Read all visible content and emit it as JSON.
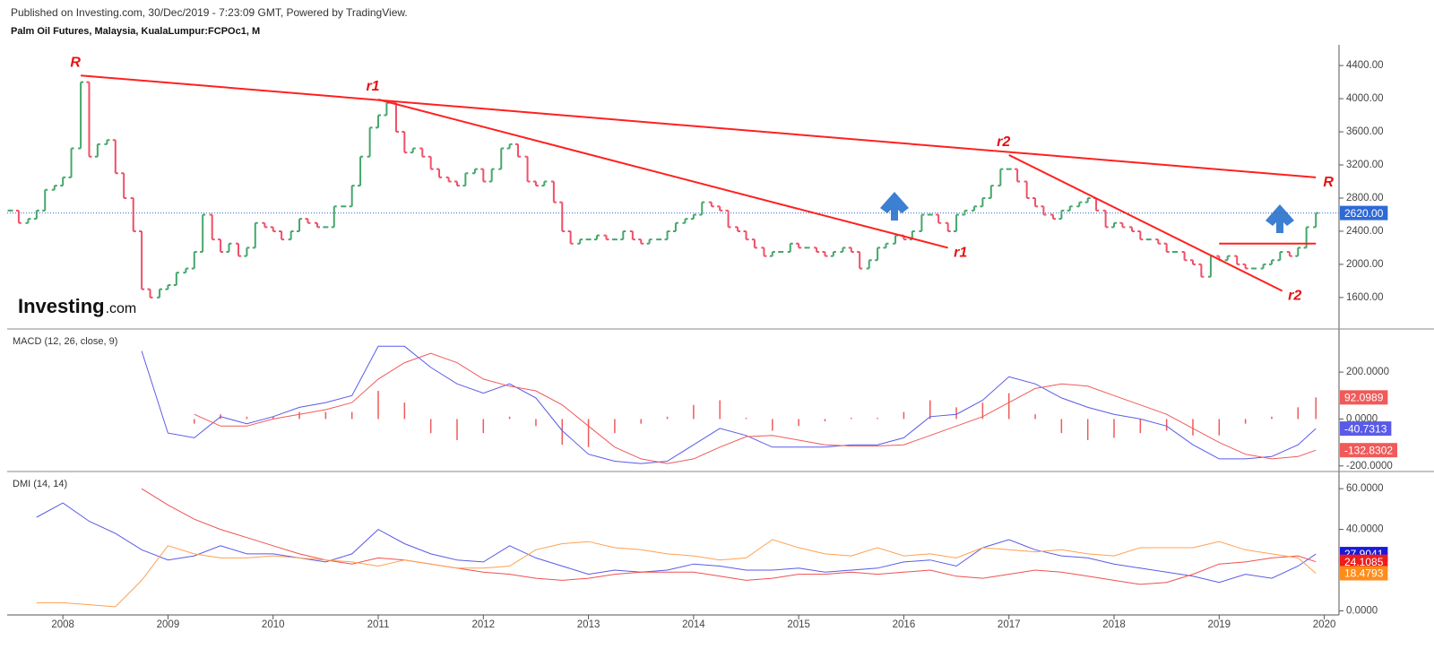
{
  "header": {
    "published": "Published on Investing.com, 30/Dec/2019 - 7:23:09 GMT, Powered by TradingView.",
    "symbol": "Palm Oil Futures, Malaysia, KualaLumpur:FCPOc1, M"
  },
  "logo": {
    "name": "Investing",
    "suffix": ".com"
  },
  "chart_data": [
    {
      "type": "bar",
      "up_color": "#45a76b",
      "down_color": "#ef5068",
      "xlim": [
        2007.47,
        2020.14
      ],
      "ylim": [
        1220,
        4650
      ],
      "yticks": [
        {
          "value": 1600,
          "label": "1600.00"
        },
        {
          "value": 2000,
          "label": "2000.00"
        },
        {
          "value": 2400,
          "label": "2400.00"
        },
        {
          "value": 2800,
          "label": "2800.00"
        },
        {
          "value": 3200,
          "label": "3200.00"
        },
        {
          "value": 3600,
          "label": "3600.00"
        },
        {
          "value": 4000,
          "label": "4000.00"
        },
        {
          "value": 4400,
          "label": "4400.00"
        }
      ],
      "last_price": {
        "value": 2620,
        "label": "2620.00",
        "color": "#2e6ad6"
      },
      "x": [
        2007.5,
        2007.58,
        2007.67,
        2007.75,
        2007.83,
        2007.92,
        2008,
        2008.08,
        2008.17,
        2008.25,
        2008.33,
        2008.42,
        2008.5,
        2008.58,
        2008.67,
        2008.75,
        2008.83,
        2008.92,
        2009,
        2009.08,
        2009.17,
        2009.25,
        2009.33,
        2009.42,
        2009.5,
        2009.58,
        2009.67,
        2009.75,
        2009.83,
        2009.92,
        2010,
        2010.08,
        2010.17,
        2010.25,
        2010.33,
        2010.42,
        2010.5,
        2010.58,
        2010.67,
        2010.75,
        2010.83,
        2010.92,
        2011,
        2011.08,
        2011.17,
        2011.25,
        2011.33,
        2011.42,
        2011.5,
        2011.58,
        2011.67,
        2011.75,
        2011.83,
        2011.92,
        2012,
        2012.08,
        2012.17,
        2012.25,
        2012.33,
        2012.42,
        2012.5,
        2012.58,
        2012.67,
        2012.75,
        2012.83,
        2012.92,
        2013,
        2013.08,
        2013.17,
        2013.25,
        2013.33,
        2013.42,
        2013.5,
        2013.58,
        2013.67,
        2013.75,
        2013.83,
        2013.92,
        2014,
        2014.08,
        2014.17,
        2014.25,
        2014.33,
        2014.42,
        2014.5,
        2014.58,
        2014.67,
        2014.75,
        2014.83,
        2014.92,
        2015,
        2015.08,
        2015.17,
        2015.25,
        2015.33,
        2015.42,
        2015.5,
        2015.58,
        2015.67,
        2015.75,
        2015.83,
        2015.92,
        2016,
        2016.08,
        2016.17,
        2016.25,
        2016.33,
        2016.42,
        2016.5,
        2016.58,
        2016.67,
        2016.75,
        2016.83,
        2016.92,
        2017,
        2017.08,
        2017.17,
        2017.25,
        2017.33,
        2017.42,
        2017.5,
        2017.58,
        2017.67,
        2017.75,
        2017.83,
        2017.92,
        2018,
        2018.08,
        2018.17,
        2018.25,
        2018.33,
        2018.42,
        2018.5,
        2018.58,
        2018.67,
        2018.75,
        2018.83,
        2018.92,
        2019,
        2019.08,
        2019.17,
        2019.25,
        2019.33,
        2019.42,
        2019.5,
        2019.58,
        2019.67,
        2019.75,
        2019.83,
        2019.92
      ],
      "values": [
        2650,
        2500,
        2550,
        2650,
        2900,
        2950,
        3050,
        3400,
        4200,
        3300,
        3450,
        3500,
        3100,
        2800,
        2400,
        1700,
        1600,
        1700,
        1750,
        1900,
        1950,
        2150,
        2600,
        2300,
        2150,
        2250,
        2100,
        2200,
        2500,
        2450,
        2400,
        2300,
        2400,
        2550,
        2500,
        2450,
        2450,
        2700,
        2700,
        2950,
        3300,
        3650,
        3800,
        3950,
        3600,
        3350,
        3400,
        3300,
        3150,
        3050,
        3000,
        2950,
        3100,
        3150,
        3000,
        3150,
        3400,
        3450,
        3300,
        3000,
        2950,
        3000,
        2750,
        2400,
        2250,
        2300,
        2300,
        2350,
        2300,
        2300,
        2400,
        2300,
        2250,
        2300,
        2300,
        2400,
        2500,
        2550,
        2600,
        2750,
        2700,
        2650,
        2450,
        2400,
        2300,
        2200,
        2100,
        2150,
        2150,
        2250,
        2200,
        2200,
        2150,
        2100,
        2150,
        2200,
        2150,
        1950,
        2050,
        2200,
        2250,
        2350,
        2300,
        2400,
        2600,
        2600,
        2500,
        2400,
        2600,
        2650,
        2700,
        2800,
        2950,
        3150,
        3150,
        3000,
        2800,
        2700,
        2600,
        2550,
        2650,
        2700,
        2750,
        2800,
        2650,
        2450,
        2500,
        2450,
        2400,
        2300,
        2300,
        2250,
        2150,
        2150,
        2050,
        2000,
        1850,
        2100,
        2050,
        2100,
        2000,
        1950,
        1950,
        2000,
        2050,
        2150,
        2100,
        2200,
        2450,
        2620
      ],
      "trendline_color": "#ff2020",
      "trendlines": [
        {
          "label": "R",
          "from": [
            2008.17,
            4280
          ],
          "to": [
            2019.92,
            3050
          ]
        },
        {
          "label": "r1",
          "from": [
            2011.0,
            3990
          ],
          "to": [
            2016.42,
            2200
          ]
        },
        {
          "label": "r2",
          "from": [
            2017.0,
            3320
          ],
          "to": [
            2019.6,
            1680
          ]
        },
        {
          "from": [
            2019.0,
            2250
          ],
          "to": [
            2019.92,
            2250
          ]
        }
      ]
    },
    {
      "type": "macd",
      "title": "MACD (12, 26, close, 9)",
      "xlim": [
        2007.47,
        2020.14
      ],
      "ylim": [
        -220,
        380
      ],
      "yticks": [
        {
          "value": -200,
          "label": "-200.0000"
        },
        {
          "value": 0,
          "label": "0.0000"
        },
        {
          "value": 200,
          "label": "200.0000"
        }
      ],
      "x": [
        2008.75,
        2009,
        2009.25,
        2009.5,
        2009.75,
        2010,
        2010.25,
        2010.5,
        2010.75,
        2011,
        2011.25,
        2011.5,
        2011.75,
        2012,
        2012.25,
        2012.5,
        2012.75,
        2013,
        2013.25,
        2013.5,
        2013.75,
        2014,
        2014.25,
        2014.5,
        2014.75,
        2015,
        2015.25,
        2015.5,
        2015.75,
        2016,
        2016.25,
        2016.5,
        2016.75,
        2017,
        2017.25,
        2017.5,
        2017.75,
        2018,
        2018.25,
        2018.5,
        2018.75,
        2019,
        2019.25,
        2019.5,
        2019.75,
        2019.92
      ],
      "series": [
        {
          "type": "bar",
          "color": "#f05a5a",
          "values": [
            null,
            null,
            -20,
            20,
            10,
            10,
            30,
            30,
            30,
            120,
            70,
            -60,
            -90,
            -60,
            10,
            -30,
            -110,
            -120,
            -60,
            -20,
            10,
            60,
            80,
            5,
            -50,
            -30,
            -10,
            5,
            5,
            30,
            80,
            50,
            70,
            110,
            20,
            -60,
            -90,
            -80,
            -60,
            -50,
            -70,
            -70,
            -20,
            10,
            50,
            92.0989
          ]
        },
        {
          "type": "line",
          "color": "#5a5ae8",
          "values": [
            290,
            -60,
            -80,
            10,
            -20,
            10,
            50,
            70,
            100,
            310,
            310,
            220,
            150,
            110,
            150,
            90,
            -50,
            -150,
            -180,
            -190,
            -180,
            -110,
            -40,
            -70,
            -120,
            -120,
            -120,
            -110,
            -110,
            -80,
            10,
            20,
            80,
            180,
            150,
            90,
            50,
            20,
            0,
            -30,
            -110,
            -170,
            -170,
            -160,
            -110,
            -40.7313
          ]
        },
        {
          "type": "line",
          "color": "#f05a5a",
          "values": [
            null,
            null,
            20,
            -30,
            -30,
            0,
            20,
            40,
            70,
            170,
            240,
            280,
            240,
            170,
            140,
            120,
            60,
            -30,
            -120,
            -170,
            -190,
            -170,
            -120,
            -75,
            -70,
            -90,
            -110,
            -115,
            -115,
            -110,
            -70,
            -30,
            10,
            70,
            130,
            150,
            140,
            100,
            60,
            20,
            -40,
            -100,
            -150,
            -170,
            -160,
            -132.8302
          ]
        }
      ]
    },
    {
      "type": "line",
      "title": "DMI (14, 14)",
      "xlim": [
        2007.47,
        2020.14
      ],
      "ylim": [
        -2,
        68
      ],
      "yticks": [
        {
          "value": 0,
          "label": "0.0000"
        },
        {
          "value": 40,
          "label": "40.0000"
        },
        {
          "value": 60,
          "label": "60.0000"
        }
      ],
      "xticks": [
        2008,
        2009,
        2010,
        2011,
        2012,
        2013,
        2014,
        2015,
        2016,
        2017,
        2018,
        2019,
        2020
      ],
      "x": [
        2007.75,
        2008,
        2008.25,
        2008.5,
        2008.75,
        2009,
        2009.25,
        2009.5,
        2009.75,
        2010,
        2010.25,
        2010.5,
        2010.75,
        2011,
        2011.25,
        2011.5,
        2011.75,
        2012,
        2012.25,
        2012.5,
        2012.75,
        2013,
        2013.25,
        2013.5,
        2013.75,
        2014,
        2014.25,
        2014.5,
        2014.75,
        2015,
        2015.25,
        2015.5,
        2015.75,
        2016,
        2016.25,
        2016.5,
        2016.75,
        2017,
        2017.25,
        2017.5,
        2017.75,
        2018,
        2018.25,
        2018.5,
        2018.75,
        2019,
        2019.25,
        2019.5,
        2019.75,
        2019.92
      ],
      "series": [
        {
          "color": "#5a5ae8",
          "badge_color": "#1a1ad8",
          "values": [
            46,
            53,
            44,
            38,
            30,
            25,
            27,
            32,
            28,
            28,
            26,
            24,
            28,
            40,
            33,
            28,
            25,
            24,
            32,
            26,
            22,
            18,
            20,
            19,
            20,
            23,
            22,
            20,
            20,
            21,
            19,
            20,
            21,
            24,
            25,
            22,
            31,
            35,
            30,
            27,
            26,
            23,
            21,
            19,
            17,
            14,
            18,
            16,
            22,
            27.9041
          ]
        },
        {
          "color": "#f05050",
          "badge_color": "#ee1c1c",
          "values": [
            null,
            null,
            null,
            null,
            60,
            52,
            45,
            40,
            36,
            32,
            28,
            25,
            23,
            26,
            25,
            23,
            21,
            19,
            18,
            16,
            15,
            16,
            18,
            19,
            19,
            19,
            17,
            15,
            16,
            18,
            18,
            19,
            18,
            19,
            20,
            17,
            16,
            18,
            20,
            19,
            17,
            15,
            13,
            14,
            18,
            23,
            24,
            26,
            27,
            24.1085
          ]
        },
        {
          "color": "#ffa050",
          "badge_color": "#ff8c1a",
          "values": [
            4,
            4,
            3,
            2,
            15,
            32,
            28,
            26,
            26,
            27,
            26,
            25,
            24,
            22,
            25,
            23,
            21,
            21,
            22,
            30,
            33,
            34,
            31,
            30,
            28,
            27,
            25,
            26,
            35,
            31,
            28,
            27,
            31,
            27,
            28,
            26,
            31,
            30,
            29,
            30,
            28,
            27,
            31,
            31,
            31,
            34,
            30,
            28,
            26,
            18.4793
          ]
        }
      ]
    }
  ]
}
